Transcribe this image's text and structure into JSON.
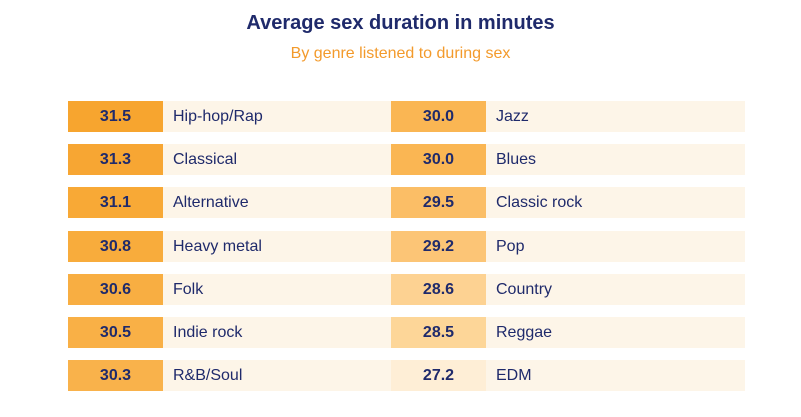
{
  "header": {
    "title": "Average sex duration in minutes",
    "subtitle": "By genre listened to during sex"
  },
  "table": {
    "columns": [
      [
        {
          "value": "31.5",
          "label": "Hip-hop/Rap",
          "color": "#f7a52f"
        },
        {
          "value": "31.3",
          "label": "Classical",
          "color": "#f7a633"
        },
        {
          "value": "31.1",
          "label": "Alternative",
          "color": "#f8a936"
        },
        {
          "value": "30.8",
          "label": "Heavy metal",
          "color": "#f8ac3c"
        },
        {
          "value": "30.6",
          "label": "Folk",
          "color": "#f8ae42"
        },
        {
          "value": "30.5",
          "label": "Indie rock",
          "color": "#f9b046"
        },
        {
          "value": "30.3",
          "label": "R&B/Soul",
          "color": "#f9b24b"
        }
      ],
      [
        {
          "value": "30.0",
          "label": "Jazz",
          "color": "#fab653"
        },
        {
          "value": "30.0",
          "label": "Blues",
          "color": "#fab653"
        },
        {
          "value": "29.5",
          "label": "Classic rock",
          "color": "#fbbe66"
        },
        {
          "value": "29.2",
          "label": "Pop",
          "color": "#fcc576"
        },
        {
          "value": "28.6",
          "label": "Country",
          "color": "#fdd292"
        },
        {
          "value": "28.5",
          "label": "Reggae",
          "color": "#fdd698"
        },
        {
          "value": "27.2",
          "label": "EDM",
          "color": "#feeed6"
        }
      ]
    ]
  }
}
